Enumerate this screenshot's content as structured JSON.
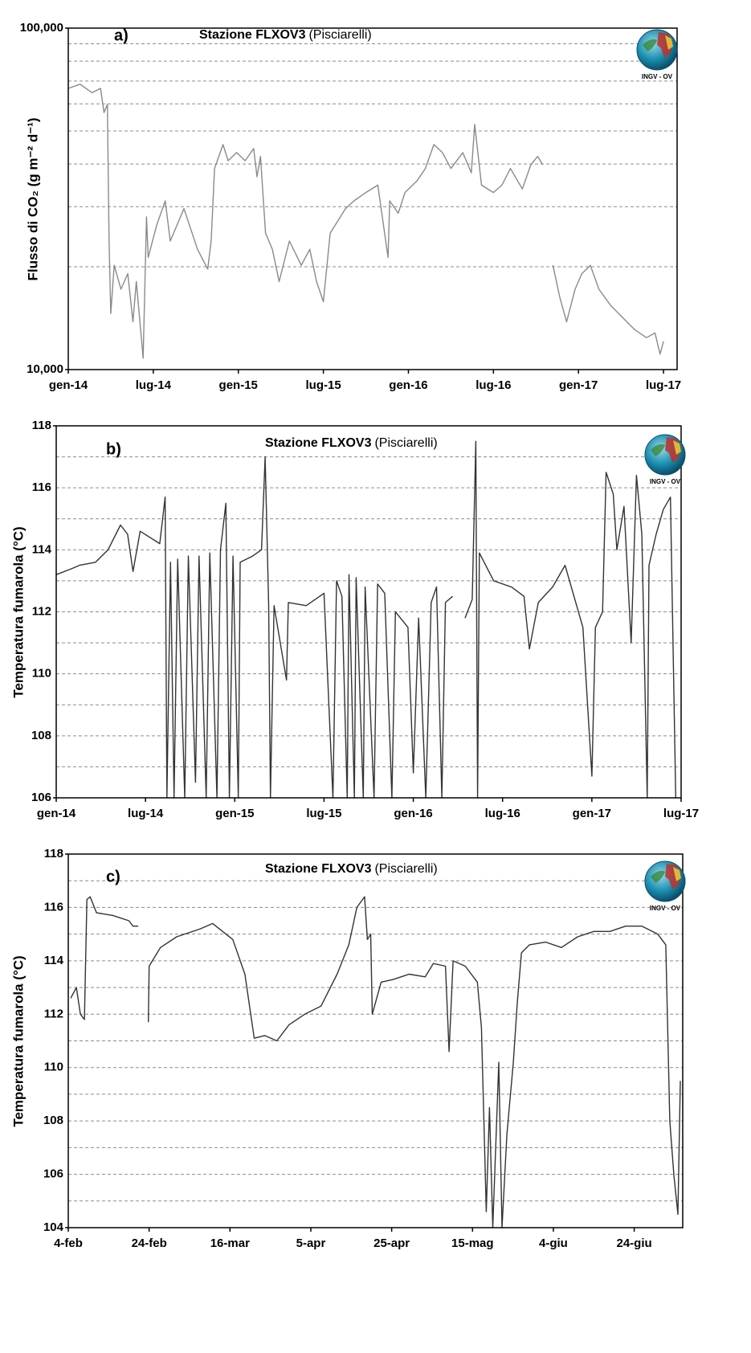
{
  "chart_data": [
    {
      "type": "line",
      "panel_label": "a)",
      "title": "Stazione FLXOV3",
      "title_note": "(Pisciarelli)",
      "logo_text": "INGV - OV",
      "y_label": "Flusso di CO₂ (g m⁻² d⁻¹)",
      "log_y": true,
      "color": "#8a8a8a",
      "xlim": [
        2014.0,
        2017.58
      ],
      "xticks": [
        {
          "value": 2014.0,
          "label": "gen-14"
        },
        {
          "value": 2014.5,
          "label": "lug-14"
        },
        {
          "value": 2015.0,
          "label": "gen-15"
        },
        {
          "value": 2015.5,
          "label": "lug-15"
        },
        {
          "value": 2016.0,
          "label": "gen-16"
        },
        {
          "value": 2016.5,
          "label": "lug-16"
        },
        {
          "value": 2017.0,
          "label": "gen-17"
        },
        {
          "value": 2017.5,
          "label": "lug-17"
        }
      ],
      "ylim": [
        10000,
        100000
      ],
      "yticks": [
        {
          "value": 10000,
          "label": "10,000"
        },
        {
          "value": 100000,
          "label": "100,000"
        }
      ],
      "minor_yticks": [
        20000,
        30000,
        40000,
        50000,
        60000,
        70000,
        80000,
        90000
      ],
      "x": [
        2014.0,
        2014.07,
        2014.14,
        2014.19,
        2014.21,
        2014.23,
        2014.24,
        2014.25,
        2014.27,
        2014.31,
        2014.35,
        2014.38,
        2014.4,
        2014.43,
        2014.44,
        2014.46,
        2014.47,
        2014.52,
        2014.57,
        2014.6,
        2014.68,
        2014.76,
        2014.82,
        2014.84,
        2014.86,
        2014.91,
        2014.94,
        2014.99,
        2015.04,
        2015.09,
        2015.11,
        2015.13,
        2015.16,
        2015.2,
        2015.24,
        2015.3,
        2015.37,
        2015.42,
        2015.46,
        2015.5,
        2015.54,
        2015.57,
        2015.63,
        2015.68,
        2015.75,
        2015.82,
        2015.88,
        2015.89,
        2015.94,
        2015.98,
        2016.05,
        2016.1,
        2016.15,
        2016.2,
        2016.25,
        2016.32,
        2016.37,
        2016.39,
        2016.43,
        2016.5,
        2016.55,
        2016.6,
        2016.67,
        2016.72,
        2016.76,
        2016.79,
        2016.82,
        2016.85,
        2016.89,
        2016.93,
        2016.98,
        2017.02,
        2017.07,
        2017.12,
        2017.19,
        2017.26,
        2017.33,
        2017.4,
        2017.45,
        2017.48,
        2017.5
      ],
      "values": [
        66600,
        68500,
        64700,
        66600,
        56600,
        59800,
        23800,
        14600,
        20200,
        17200,
        19100,
        13800,
        18100,
        12400,
        10800,
        28000,
        21300,
        26500,
        31200,
        23800,
        29600,
        22500,
        19700,
        23800,
        38800,
        45600,
        40900,
        43200,
        40900,
        44400,
        36700,
        42100,
        25100,
        22500,
        18100,
        23800,
        20200,
        22500,
        18100,
        15800,
        25100,
        26500,
        29600,
        31200,
        33000,
        34700,
        21300,
        31200,
        28700,
        33000,
        35700,
        38800,
        45600,
        43200,
        38800,
        43200,
        37700,
        52200,
        34700,
        33000,
        34700,
        38800,
        33800,
        39800,
        42100,
        39800,
        null,
        20200,
        16300,
        13800,
        17200,
        19100,
        20200,
        17200,
        15400,
        14200,
        13100,
        12400,
        12800,
        11100,
        12100
      ]
    },
    {
      "type": "line",
      "panel_label": "b)",
      "title": "Stazione FLXOV3",
      "title_note": "(Pisciarelli)",
      "logo_text": "INGV - OV",
      "y_label": "Temperatura fumarola  (°C)",
      "log_y": false,
      "color": "#333333",
      "xlim": [
        2014.0,
        2017.5
      ],
      "xticks": [
        {
          "value": 2014.0,
          "label": "gen-14"
        },
        {
          "value": 2014.5,
          "label": "lug-14"
        },
        {
          "value": 2015.0,
          "label": "gen-15"
        },
        {
          "value": 2015.5,
          "label": "lug-15"
        },
        {
          "value": 2016.0,
          "label": "gen-16"
        },
        {
          "value": 2016.5,
          "label": "lug-16"
        },
        {
          "value": 2017.0,
          "label": "gen-17"
        },
        {
          "value": 2017.5,
          "label": "lug-17"
        }
      ],
      "ylim": [
        106,
        118
      ],
      "yticks": [
        106,
        108,
        110,
        112,
        114,
        116,
        118
      ],
      "minor_yticks": [
        107,
        109,
        111,
        113,
        115,
        117
      ],
      "x": [
        2014.0,
        2014.09,
        2014.13,
        2014.22,
        2014.29,
        2014.36,
        2014.4,
        2014.43,
        2014.47,
        2014.58,
        2014.61,
        2014.62,
        2014.64,
        2014.66,
        2014.68,
        2014.72,
        2014.74,
        2014.78,
        2014.8,
        2014.84,
        2014.86,
        2014.9,
        2014.92,
        2014.95,
        2014.97,
        2014.99,
        2015.02,
        2015.03,
        2015.1,
        2015.15,
        2015.17,
        2015.19,
        2015.2,
        2015.22,
        2015.29,
        2015.3,
        2015.4,
        2015.5,
        2015.55,
        2015.57,
        2015.6,
        2015.63,
        2015.64,
        2015.67,
        2015.68,
        2015.72,
        2015.73,
        2015.78,
        2015.8,
        2015.84,
        2015.88,
        2015.9,
        2015.97,
        2016.0,
        2016.03,
        2016.07,
        2016.1,
        2016.13,
        2016.16,
        2016.18,
        2016.22,
        2016.25,
        2016.29,
        2016.33,
        2016.35,
        2016.36,
        2016.37,
        2016.45,
        2016.55,
        2016.62,
        2016.65,
        2016.7,
        2016.78,
        2016.85,
        2016.9,
        2016.95,
        2017.0,
        2017.02,
        2017.06,
        2017.08,
        2017.12,
        2017.14,
        2017.18,
        2017.22,
        2017.25,
        2017.28,
        2017.31,
        2017.32,
        2017.36,
        2017.4,
        2017.44,
        2017.47
      ],
      "values": [
        113.2,
        113.4,
        113.5,
        113.6,
        114.0,
        114.8,
        114.5,
        113.3,
        114.6,
        114.2,
        115.7,
        106,
        113.6,
        106,
        113.7,
        106,
        113.8,
        106.5,
        113.8,
        106,
        113.9,
        106,
        114.0,
        115.5,
        106,
        113.8,
        106,
        113.6,
        113.8,
        114.0,
        117.0,
        112.2,
        106,
        112.2,
        109.8,
        112.3,
        112.2,
        112.6,
        106,
        113.0,
        112.5,
        106,
        113.2,
        106,
        113.1,
        106,
        112.8,
        106,
        112.9,
        112.6,
        106,
        112.0,
        111.5,
        106.8,
        111.8,
        106,
        112.3,
        112.8,
        106,
        112.3,
        112.5,
        null,
        111.8,
        112.4,
        117.5,
        106,
        113.9,
        113.0,
        112.8,
        112.5,
        110.8,
        112.3,
        112.8,
        113.5,
        112.5,
        111.5,
        106.7,
        111.5,
        112.0,
        116.5,
        115.8,
        114.0,
        115.4,
        111.0,
        116.4,
        114.5,
        106,
        113.5,
        114.5,
        115.3,
        115.7,
        106
      ]
    },
    {
      "type": "line",
      "panel_label": "c)",
      "title": "Stazione FLXOV3",
      "title_note": "(Pisciarelli)",
      "logo_text": "INGV - OV",
      "y_label": "Temperatura fumarola  (°C)",
      "log_y": false,
      "color": "#333333",
      "xlim": [
        35,
        187
      ],
      "xticks": [
        {
          "value": 35,
          "label": "4-feb"
        },
        {
          "value": 55,
          "label": "24-feb"
        },
        {
          "value": 75,
          "label": "16-mar"
        },
        {
          "value": 95,
          "label": "5-apr"
        },
        {
          "value": 115,
          "label": "25-apr"
        },
        {
          "value": 135,
          "label": "15-mag"
        },
        {
          "value": 155,
          "label": "4-giu"
        },
        {
          "value": 175,
          "label": "24-giu"
        }
      ],
      "ylim": [
        104,
        118
      ],
      "yticks": [
        104,
        106,
        108,
        110,
        112,
        114,
        116,
        118
      ],
      "minor_yticks": [
        105,
        107,
        109,
        111,
        113,
        115,
        117
      ],
      "x": [
        35.6,
        37,
        38,
        39,
        39.6,
        40.4,
        42,
        46,
        50,
        51,
        52.3,
        53.5,
        54.8,
        55,
        57.8,
        61.8,
        67.7,
        70.7,
        75.7,
        78.7,
        81,
        83.6,
        86.6,
        89.6,
        93.5,
        97.5,
        101.5,
        104.4,
        106.4,
        108.3,
        109,
        109.8,
        110.2,
        112.4,
        115.4,
        119.3,
        123.3,
        125.3,
        128.3,
        129.2,
        130.2,
        133.2,
        136.2,
        137.2,
        138.4,
        139.2,
        140,
        140.8,
        141.5,
        142.3,
        143.5,
        145.1,
        146.1,
        147.1,
        149.1,
        153.1,
        157,
        161,
        165,
        169,
        172.9,
        176.9,
        180.8,
        182.8,
        183.8,
        184.8,
        185.8,
        186.4
      ],
      "values": [
        112.6,
        113.0,
        112.0,
        111.8,
        116.3,
        116.4,
        115.8,
        115.7,
        115.5,
        115.3,
        115.3,
        null,
        111.7,
        113.8,
        114.5,
        114.9,
        115.2,
        115.4,
        114.8,
        113.5,
        111.1,
        111.2,
        111.0,
        111.6,
        112.0,
        112.3,
        113.5,
        114.6,
        116.0,
        116.4,
        114.8,
        115.0,
        112.0,
        113.2,
        113.3,
        113.5,
        113.4,
        113.9,
        113.8,
        110.6,
        114.0,
        113.8,
        113.2,
        111.5,
        104.6,
        108.5,
        104,
        107.3,
        110.2,
        104,
        107.5,
        110.2,
        112.5,
        114.3,
        114.6,
        114.7,
        114.5,
        114.9,
        115.1,
        115.1,
        115.3,
        115.3,
        115.0,
        114.6,
        108,
        106,
        104.5,
        109.5
      ]
    }
  ]
}
